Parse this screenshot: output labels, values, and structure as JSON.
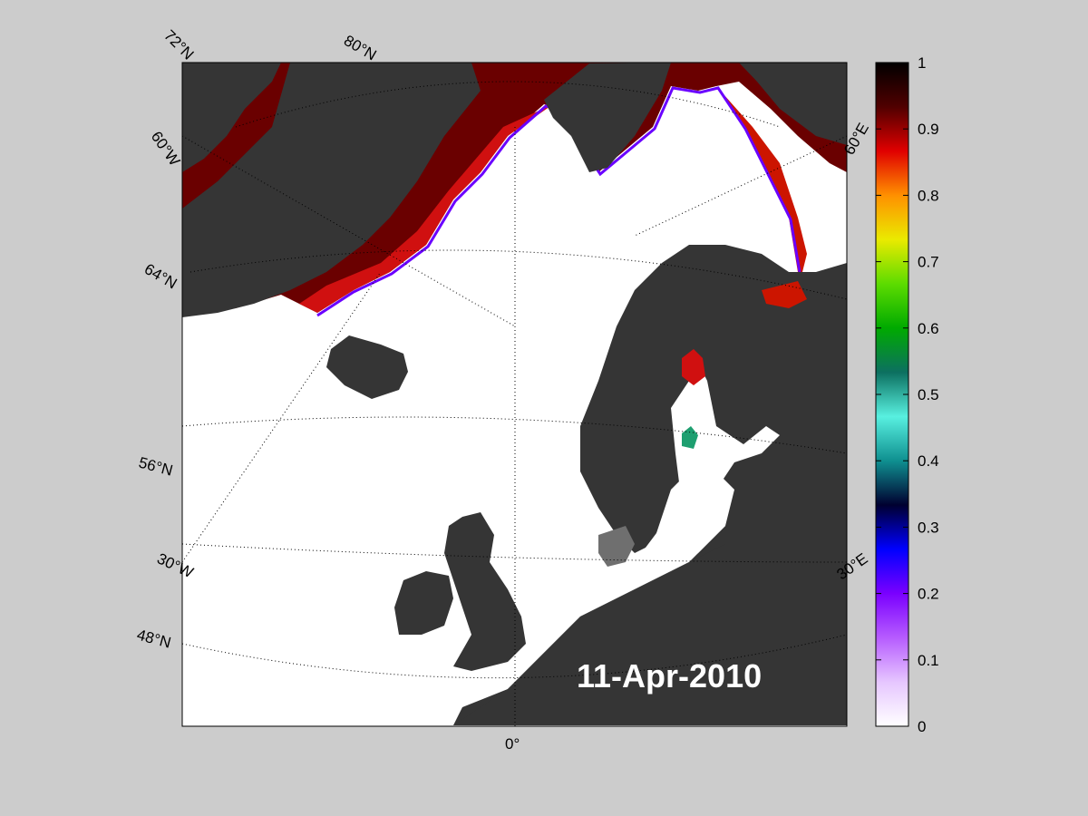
{
  "map": {
    "date": "11-Apr-2010",
    "colors": {
      "figure_background": "#cccccc",
      "ocean_open_water": "#ffffff",
      "land": "#353535",
      "land_alt": "#6f6f6f",
      "ice_dense": "#4a0000"
    },
    "grid": {
      "lat_labels": [
        "72°N",
        "80°N",
        "64°N",
        "56°N",
        "48°N"
      ],
      "lon_labels": [
        "60°W",
        "30°W",
        "0°",
        "30°E",
        "60°E"
      ]
    },
    "legend": {
      "stops": [
        "#ffffff",
        "#e6c6ff",
        "#b65cff",
        "#7a00ff",
        "#0000ff",
        "#000030",
        "#0f9090",
        "#58f0e0",
        "#0c7060",
        "#00aa00",
        "#5ddc00",
        "#eaea00",
        "#ff9000",
        "#e00000",
        "#500000",
        "#000000"
      ],
      "ticks": [
        "0",
        "0.1",
        "0.2",
        "0.3",
        "0.4",
        "0.5",
        "0.6",
        "0.7",
        "0.8",
        "0.9",
        "1"
      ]
    }
  }
}
